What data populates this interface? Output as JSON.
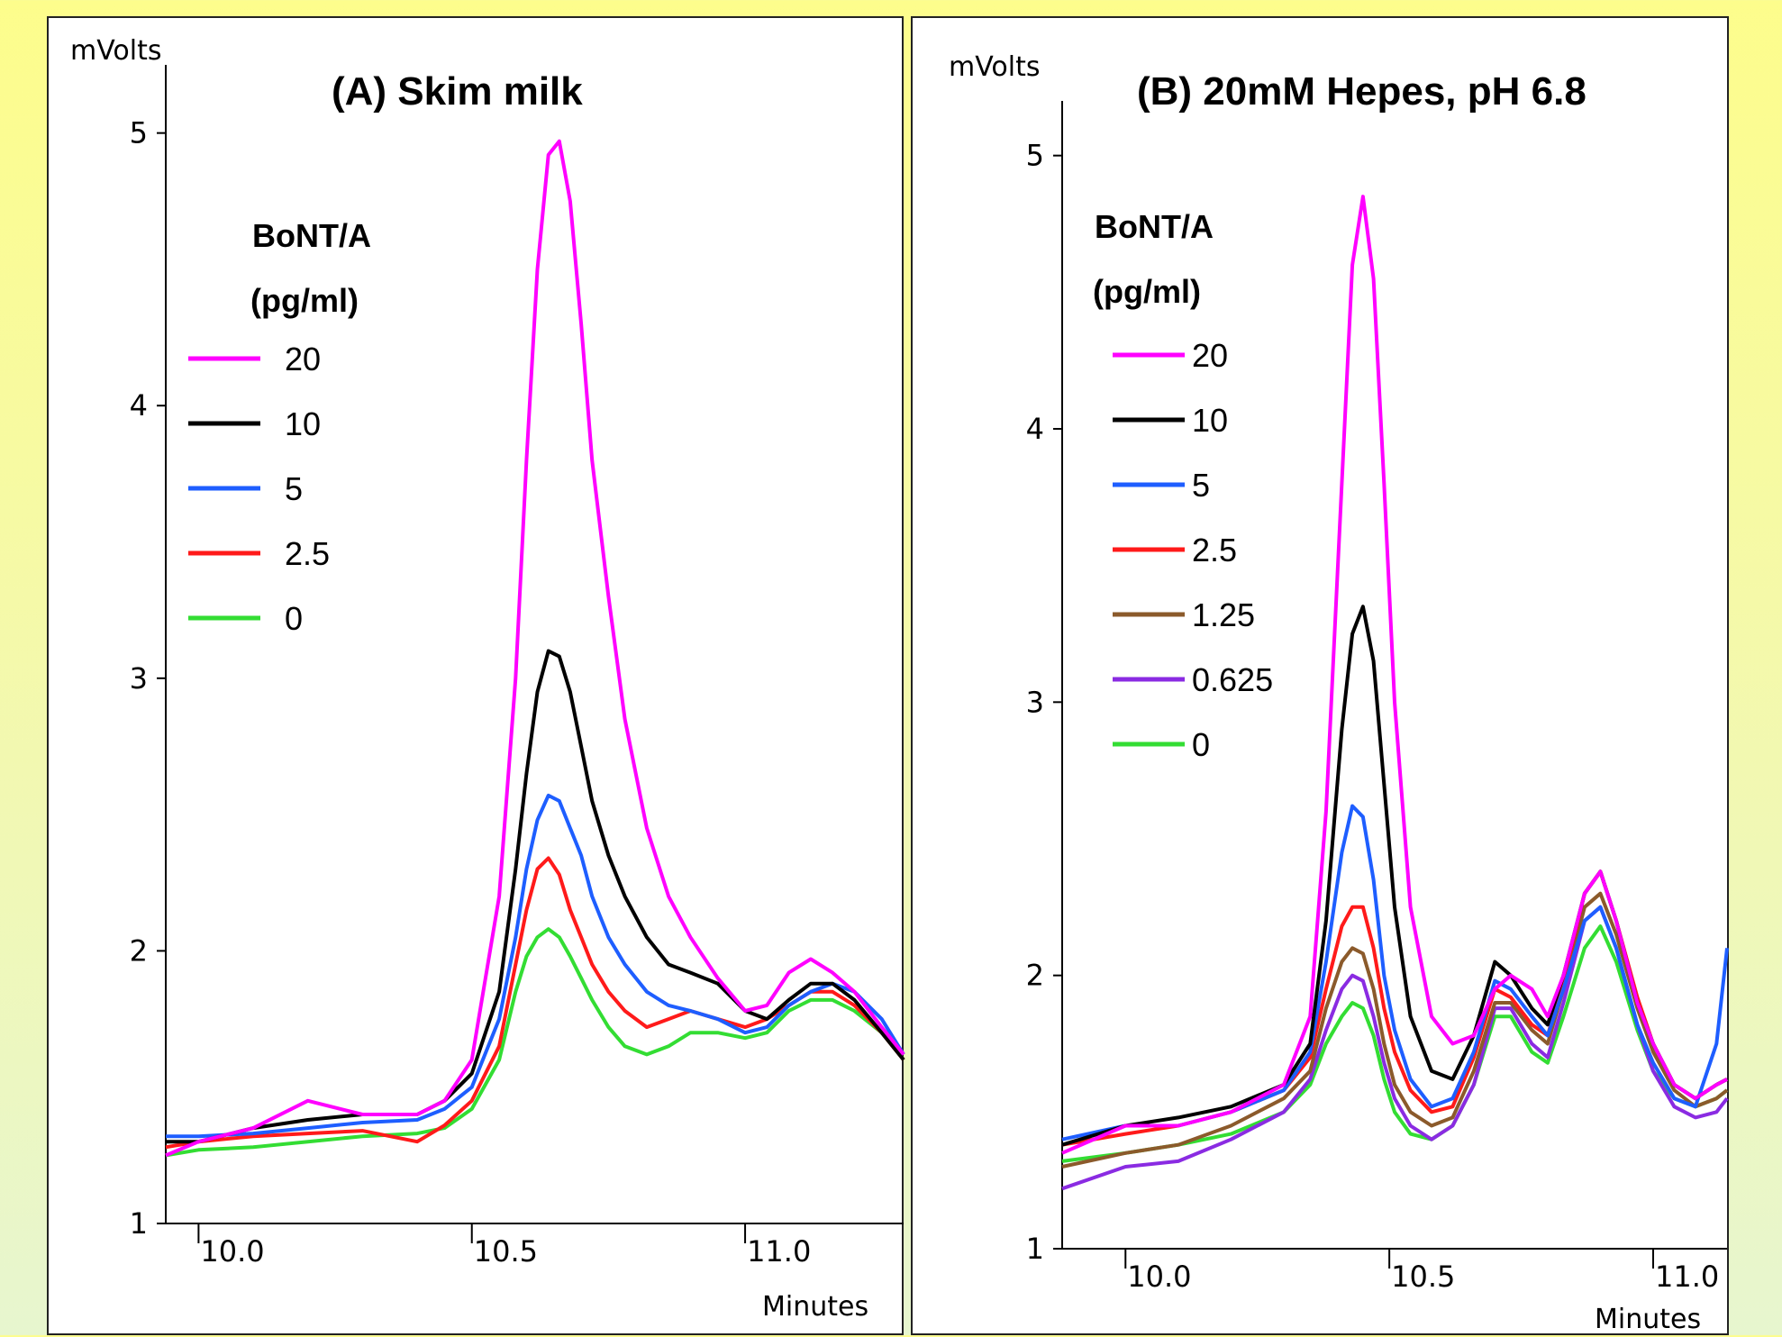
{
  "chart_data": [
    {
      "type": "line",
      "title": "(A)  Skim milk",
      "ylabel": "mVolts",
      "xlabel": "Minutes",
      "xlim": [
        9.94,
        11.29
      ],
      "ylim": [
        1,
        5.25
      ],
      "xticks": [
        10.0,
        10.5,
        11.0
      ],
      "xtick_labels": [
        "10.0",
        "10.5",
        "11.0"
      ],
      "yticks": [
        1,
        2,
        3,
        4,
        5
      ],
      "ytick_labels": [
        "1",
        "2",
        "3",
        "4",
        "5"
      ],
      "legend_title": [
        "BoNT/A",
        "(pg/ml)"
      ],
      "legend_placement": "upper-left",
      "series": [
        {
          "name": "20",
          "color": "#ff00ff",
          "x": [
            9.94,
            10.0,
            10.1,
            10.2,
            10.3,
            10.4,
            10.45,
            10.5,
            10.55,
            10.58,
            10.6,
            10.62,
            10.64,
            10.66,
            10.68,
            10.7,
            10.72,
            10.75,
            10.78,
            10.82,
            10.86,
            10.9,
            10.95,
            11.0,
            11.04,
            11.08,
            11.12,
            11.16,
            11.2,
            11.25,
            11.29
          ],
          "y": [
            1.25,
            1.3,
            1.35,
            1.45,
            1.4,
            1.4,
            1.45,
            1.6,
            2.2,
            3.0,
            3.8,
            4.5,
            4.92,
            4.97,
            4.75,
            4.3,
            3.8,
            3.3,
            2.85,
            2.45,
            2.2,
            2.05,
            1.9,
            1.78,
            1.8,
            1.92,
            1.97,
            1.92,
            1.85,
            1.72,
            1.62
          ]
        },
        {
          "name": "10",
          "color": "#000000",
          "x": [
            9.94,
            10.0,
            10.1,
            10.2,
            10.3,
            10.4,
            10.45,
            10.5,
            10.55,
            10.58,
            10.6,
            10.62,
            10.64,
            10.66,
            10.68,
            10.7,
            10.72,
            10.75,
            10.78,
            10.82,
            10.86,
            10.9,
            10.95,
            11.0,
            11.04,
            11.08,
            11.12,
            11.16,
            11.2,
            11.25,
            11.29
          ],
          "y": [
            1.3,
            1.3,
            1.35,
            1.38,
            1.4,
            1.4,
            1.45,
            1.55,
            1.85,
            2.3,
            2.65,
            2.95,
            3.1,
            3.08,
            2.95,
            2.75,
            2.55,
            2.35,
            2.2,
            2.05,
            1.95,
            1.92,
            1.88,
            1.78,
            1.75,
            1.82,
            1.88,
            1.88,
            1.82,
            1.7,
            1.6
          ]
        },
        {
          "name": "5",
          "color": "#1e5eff",
          "x": [
            9.94,
            10.0,
            10.1,
            10.2,
            10.3,
            10.4,
            10.45,
            10.5,
            10.55,
            10.58,
            10.6,
            10.62,
            10.64,
            10.66,
            10.68,
            10.7,
            10.72,
            10.75,
            10.78,
            10.82,
            10.86,
            10.9,
            10.95,
            11.0,
            11.04,
            11.08,
            11.12,
            11.16,
            11.2,
            11.25,
            11.29
          ],
          "y": [
            1.32,
            1.32,
            1.33,
            1.35,
            1.37,
            1.38,
            1.42,
            1.5,
            1.75,
            2.05,
            2.3,
            2.48,
            2.57,
            2.55,
            2.45,
            2.35,
            2.2,
            2.05,
            1.95,
            1.85,
            1.8,
            1.78,
            1.75,
            1.7,
            1.72,
            1.8,
            1.85,
            1.88,
            1.85,
            1.75,
            1.62
          ]
        },
        {
          "name": "2.5",
          "color": "#ff1a1a",
          "x": [
            9.94,
            10.0,
            10.1,
            10.2,
            10.3,
            10.4,
            10.45,
            10.5,
            10.55,
            10.58,
            10.6,
            10.62,
            10.64,
            10.66,
            10.68,
            10.7,
            10.72,
            10.75,
            10.78,
            10.82,
            10.86,
            10.9,
            10.95,
            11.0,
            11.04,
            11.08,
            11.12,
            11.16,
            11.2,
            11.25,
            11.29
          ],
          "y": [
            1.28,
            1.3,
            1.32,
            1.33,
            1.34,
            1.3,
            1.36,
            1.45,
            1.65,
            1.95,
            2.15,
            2.3,
            2.34,
            2.28,
            2.15,
            2.05,
            1.95,
            1.85,
            1.78,
            1.72,
            1.75,
            1.78,
            1.75,
            1.72,
            1.75,
            1.8,
            1.85,
            1.85,
            1.8,
            1.7,
            1.6
          ]
        },
        {
          "name": "0",
          "color": "#33dd33",
          "x": [
            9.94,
            10.0,
            10.1,
            10.2,
            10.3,
            10.4,
            10.45,
            10.5,
            10.55,
            10.58,
            10.6,
            10.62,
            10.64,
            10.66,
            10.68,
            10.7,
            10.72,
            10.75,
            10.78,
            10.82,
            10.86,
            10.9,
            10.95,
            11.0,
            11.04,
            11.08,
            11.12,
            11.16,
            11.2,
            11.25,
            11.29
          ],
          "y": [
            1.25,
            1.27,
            1.28,
            1.3,
            1.32,
            1.33,
            1.35,
            1.42,
            1.6,
            1.85,
            1.98,
            2.05,
            2.08,
            2.05,
            1.98,
            1.9,
            1.82,
            1.72,
            1.65,
            1.62,
            1.65,
            1.7,
            1.7,
            1.68,
            1.7,
            1.78,
            1.82,
            1.82,
            1.78,
            1.7,
            1.6
          ]
        }
      ]
    },
    {
      "type": "line",
      "title": "(B)  20mM Hepes, pH 6.8",
      "ylabel": "mVolts",
      "xlabel": "Minutes",
      "xlim": [
        9.88,
        11.14
      ],
      "ylim": [
        1,
        5.2
      ],
      "xticks": [
        10.0,
        10.5,
        11.0
      ],
      "xtick_labels": [
        "10.0",
        "10.5",
        "11.0"
      ],
      "yticks": [
        1,
        2,
        3,
        4,
        5
      ],
      "ytick_labels": [
        "1",
        "2",
        "3",
        "4",
        "5"
      ],
      "legend_title": [
        "BoNT/A",
        "(pg/ml)"
      ],
      "legend_placement": "upper-left",
      "series": [
        {
          "name": "20",
          "color": "#ff00ff",
          "x": [
            9.88,
            10.0,
            10.1,
            10.2,
            10.3,
            10.35,
            10.38,
            10.41,
            10.43,
            10.45,
            10.47,
            10.49,
            10.51,
            10.54,
            10.58,
            10.62,
            10.66,
            10.7,
            10.73,
            10.77,
            10.8,
            10.83,
            10.87,
            10.9,
            10.93,
            10.97,
            11.0,
            11.04,
            11.08,
            11.12,
            11.14
          ],
          "y": [
            1.35,
            1.45,
            1.45,
            1.5,
            1.6,
            1.85,
            2.6,
            3.8,
            4.6,
            4.85,
            4.55,
            3.8,
            3.0,
            2.25,
            1.85,
            1.75,
            1.78,
            1.95,
            2.0,
            1.95,
            1.85,
            2.0,
            2.3,
            2.38,
            2.2,
            1.9,
            1.75,
            1.6,
            1.55,
            1.6,
            1.62
          ]
        },
        {
          "name": "10",
          "color": "#000000",
          "x": [
            9.88,
            10.0,
            10.1,
            10.2,
            10.3,
            10.35,
            10.38,
            10.41,
            10.43,
            10.45,
            10.47,
            10.49,
            10.51,
            10.54,
            10.58,
            10.62,
            10.66,
            10.7,
            10.73,
            10.77,
            10.8,
            10.83,
            10.87,
            10.9,
            10.93,
            10.97,
            11.0,
            11.04,
            11.08,
            11.12,
            11.14
          ],
          "y": [
            1.38,
            1.45,
            1.48,
            1.52,
            1.6,
            1.75,
            2.2,
            2.9,
            3.25,
            3.35,
            3.15,
            2.7,
            2.25,
            1.85,
            1.65,
            1.62,
            1.78,
            2.05,
            2.0,
            1.88,
            1.82,
            2.0,
            2.3,
            2.38,
            2.2,
            1.9,
            1.75,
            1.6,
            1.55,
            1.6,
            1.62
          ]
        },
        {
          "name": "5",
          "color": "#1e5eff",
          "x": [
            9.88,
            10.0,
            10.1,
            10.2,
            10.3,
            10.35,
            10.38,
            10.41,
            10.43,
            10.45,
            10.47,
            10.49,
            10.51,
            10.54,
            10.58,
            10.62,
            10.66,
            10.7,
            10.73,
            10.77,
            10.8,
            10.83,
            10.87,
            10.9,
            10.93,
            10.97,
            11.0,
            11.04,
            11.08,
            11.12,
            11.14
          ],
          "y": [
            1.4,
            1.45,
            1.45,
            1.5,
            1.58,
            1.72,
            2.05,
            2.45,
            2.62,
            2.58,
            2.35,
            2.0,
            1.8,
            1.62,
            1.52,
            1.55,
            1.72,
            1.98,
            1.95,
            1.85,
            1.78,
            1.95,
            2.2,
            2.25,
            2.1,
            1.82,
            1.68,
            1.55,
            1.52,
            1.75,
            2.1
          ]
        },
        {
          "name": "2.5",
          "color": "#ff1a1a",
          "x": [
            9.88,
            10.0,
            10.1,
            10.2,
            10.3,
            10.35,
            10.38,
            10.41,
            10.43,
            10.45,
            10.47,
            10.49,
            10.51,
            10.54,
            10.58,
            10.62,
            10.66,
            10.7,
            10.73,
            10.77,
            10.8,
            10.83,
            10.87,
            10.9,
            10.93,
            10.97,
            11.0,
            11.04,
            11.08,
            11.12,
            11.14
          ],
          "y": [
            1.38,
            1.42,
            1.45,
            1.5,
            1.58,
            1.7,
            1.95,
            2.18,
            2.25,
            2.25,
            2.1,
            1.88,
            1.72,
            1.58,
            1.5,
            1.52,
            1.7,
            1.95,
            1.92,
            1.82,
            1.78,
            1.98,
            2.3,
            2.38,
            2.2,
            1.92,
            1.75,
            1.6,
            1.55,
            1.6,
            1.62
          ]
        },
        {
          "name": "1.25",
          "color": "#8b5a2b",
          "x": [
            9.88,
            10.0,
            10.1,
            10.2,
            10.3,
            10.35,
            10.38,
            10.41,
            10.43,
            10.45,
            10.47,
            10.49,
            10.51,
            10.54,
            10.58,
            10.62,
            10.66,
            10.7,
            10.73,
            10.77,
            10.8,
            10.83,
            10.87,
            10.9,
            10.93,
            10.97,
            11.0,
            11.04,
            11.08,
            11.12,
            11.14
          ],
          "y": [
            1.3,
            1.35,
            1.38,
            1.45,
            1.55,
            1.65,
            1.88,
            2.05,
            2.1,
            2.08,
            1.95,
            1.75,
            1.6,
            1.5,
            1.45,
            1.48,
            1.65,
            1.9,
            1.9,
            1.8,
            1.75,
            1.95,
            2.25,
            2.3,
            2.15,
            1.88,
            1.72,
            1.58,
            1.52,
            1.55,
            1.58
          ]
        },
        {
          "name": "0.625",
          "color": "#8a2be2",
          "x": [
            9.88,
            10.0,
            10.1,
            10.2,
            10.3,
            10.35,
            10.38,
            10.41,
            10.43,
            10.45,
            10.47,
            10.49,
            10.51,
            10.54,
            10.58,
            10.62,
            10.66,
            10.7,
            10.73,
            10.77,
            10.8,
            10.83,
            10.87,
            10.9,
            10.93,
            10.97,
            11.0,
            11.04,
            11.08,
            11.12,
            11.14
          ],
          "y": [
            1.22,
            1.3,
            1.32,
            1.4,
            1.5,
            1.62,
            1.8,
            1.95,
            2.0,
            1.98,
            1.85,
            1.68,
            1.55,
            1.45,
            1.4,
            1.45,
            1.6,
            1.88,
            1.88,
            1.75,
            1.7,
            1.9,
            2.2,
            2.25,
            2.1,
            1.82,
            1.65,
            1.52,
            1.48,
            1.5,
            1.55
          ]
        },
        {
          "name": "0",
          "color": "#33dd33",
          "x": [
            9.88,
            10.0,
            10.1,
            10.2,
            10.3,
            10.35,
            10.38,
            10.41,
            10.43,
            10.45,
            10.47,
            10.49,
            10.51,
            10.54,
            10.58,
            10.62,
            10.66,
            10.7,
            10.73,
            10.77,
            10.8,
            10.83,
            10.87,
            10.9,
            10.93,
            10.97,
            11.0,
            11.04,
            11.08,
            11.12,
            11.14
          ],
          "y": [
            1.32,
            1.35,
            1.38,
            1.42,
            1.5,
            1.6,
            1.75,
            1.85,
            1.9,
            1.88,
            1.78,
            1.62,
            1.5,
            1.42,
            1.4,
            1.45,
            1.6,
            1.85,
            1.85,
            1.72,
            1.68,
            1.85,
            2.1,
            2.18,
            2.05,
            1.8,
            1.65,
            1.55,
            1.52,
            1.55,
            1.58
          ]
        }
      ]
    }
  ]
}
